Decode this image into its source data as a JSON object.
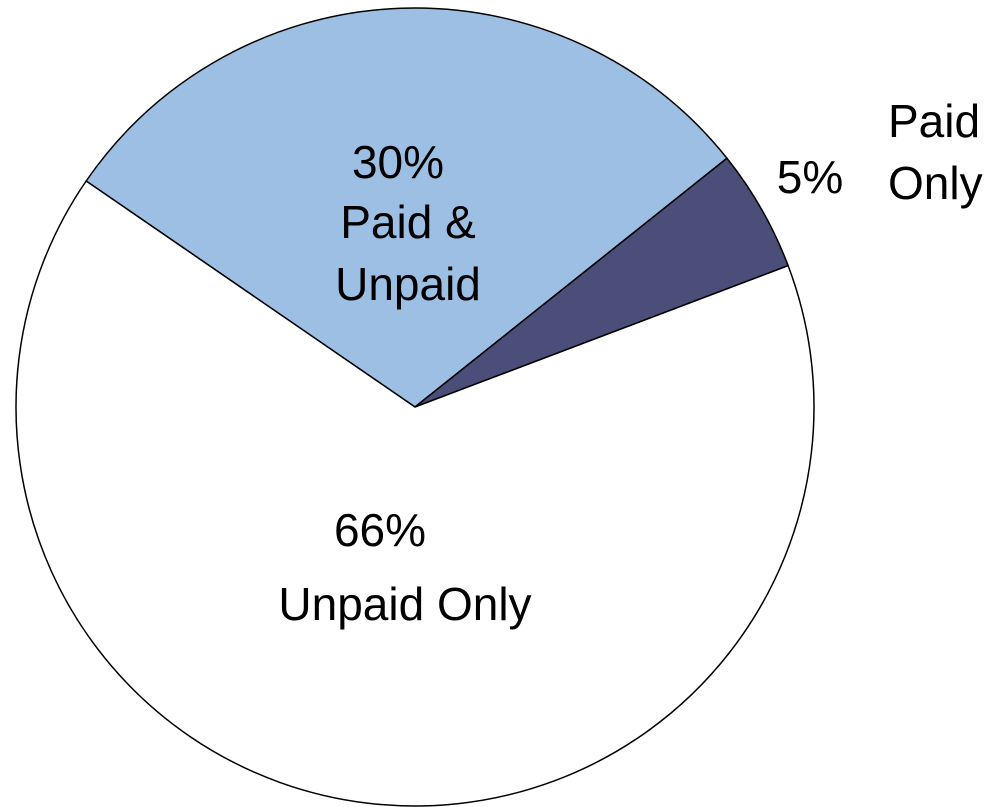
{
  "chart_data": {
    "type": "pie",
    "categories": [
      "Paid & Unpaid",
      "Paid Only",
      "Unpaid Only"
    ],
    "values": [
      30,
      5,
      66
    ],
    "value_labels": [
      "30%",
      "5%",
      "66%"
    ],
    "colors": [
      "#9dbfe3",
      "#4a4e78",
      "#ffffff"
    ]
  }
}
